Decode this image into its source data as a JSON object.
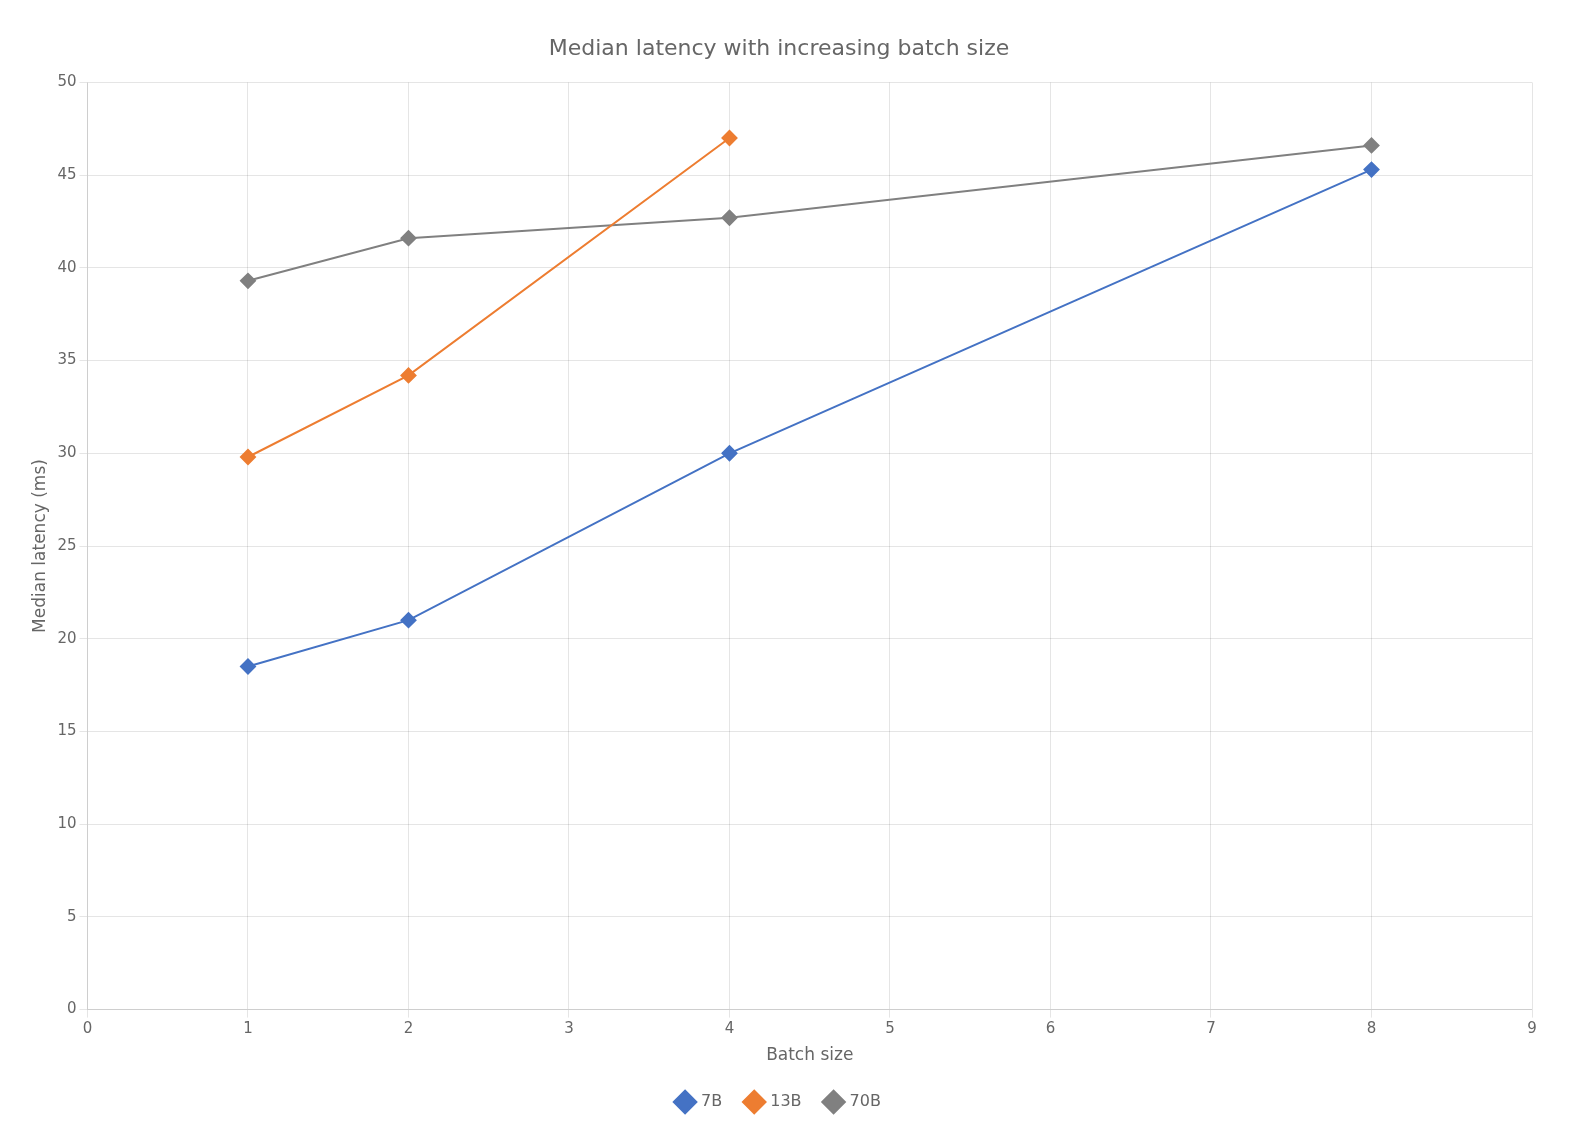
{
  "chart_data": {
    "type": "line",
    "title": "Median latency with increasing batch size",
    "xlabel": "Batch size",
    "ylabel": "Median latency (ms)",
    "xlim": [
      0,
      9
    ],
    "xticks": [
      0,
      1,
      2,
      3,
      4,
      5,
      6,
      7,
      8,
      9
    ],
    "ylim": [
      0,
      50
    ],
    "yticks": [
      0,
      5,
      10,
      15,
      20,
      25,
      30,
      35,
      40,
      45,
      50
    ],
    "grid": true,
    "legend": "bottom",
    "series": [
      {
        "name": "7B",
        "color": "#4472c4",
        "marker": "diamond",
        "x": [
          1,
          2,
          4,
          8
        ],
        "values": [
          18.5,
          21.0,
          30.0,
          45.3
        ]
      },
      {
        "name": "13B",
        "color": "#ed7d31",
        "marker": "diamond",
        "x": [
          1,
          2,
          4
        ],
        "values": [
          29.8,
          34.2,
          47.0
        ]
      },
      {
        "name": "70B",
        "color": "#808080",
        "marker": "diamond",
        "x": [
          1,
          2,
          4,
          8
        ],
        "values": [
          39.3,
          41.6,
          42.7,
          46.6
        ]
      }
    ]
  }
}
